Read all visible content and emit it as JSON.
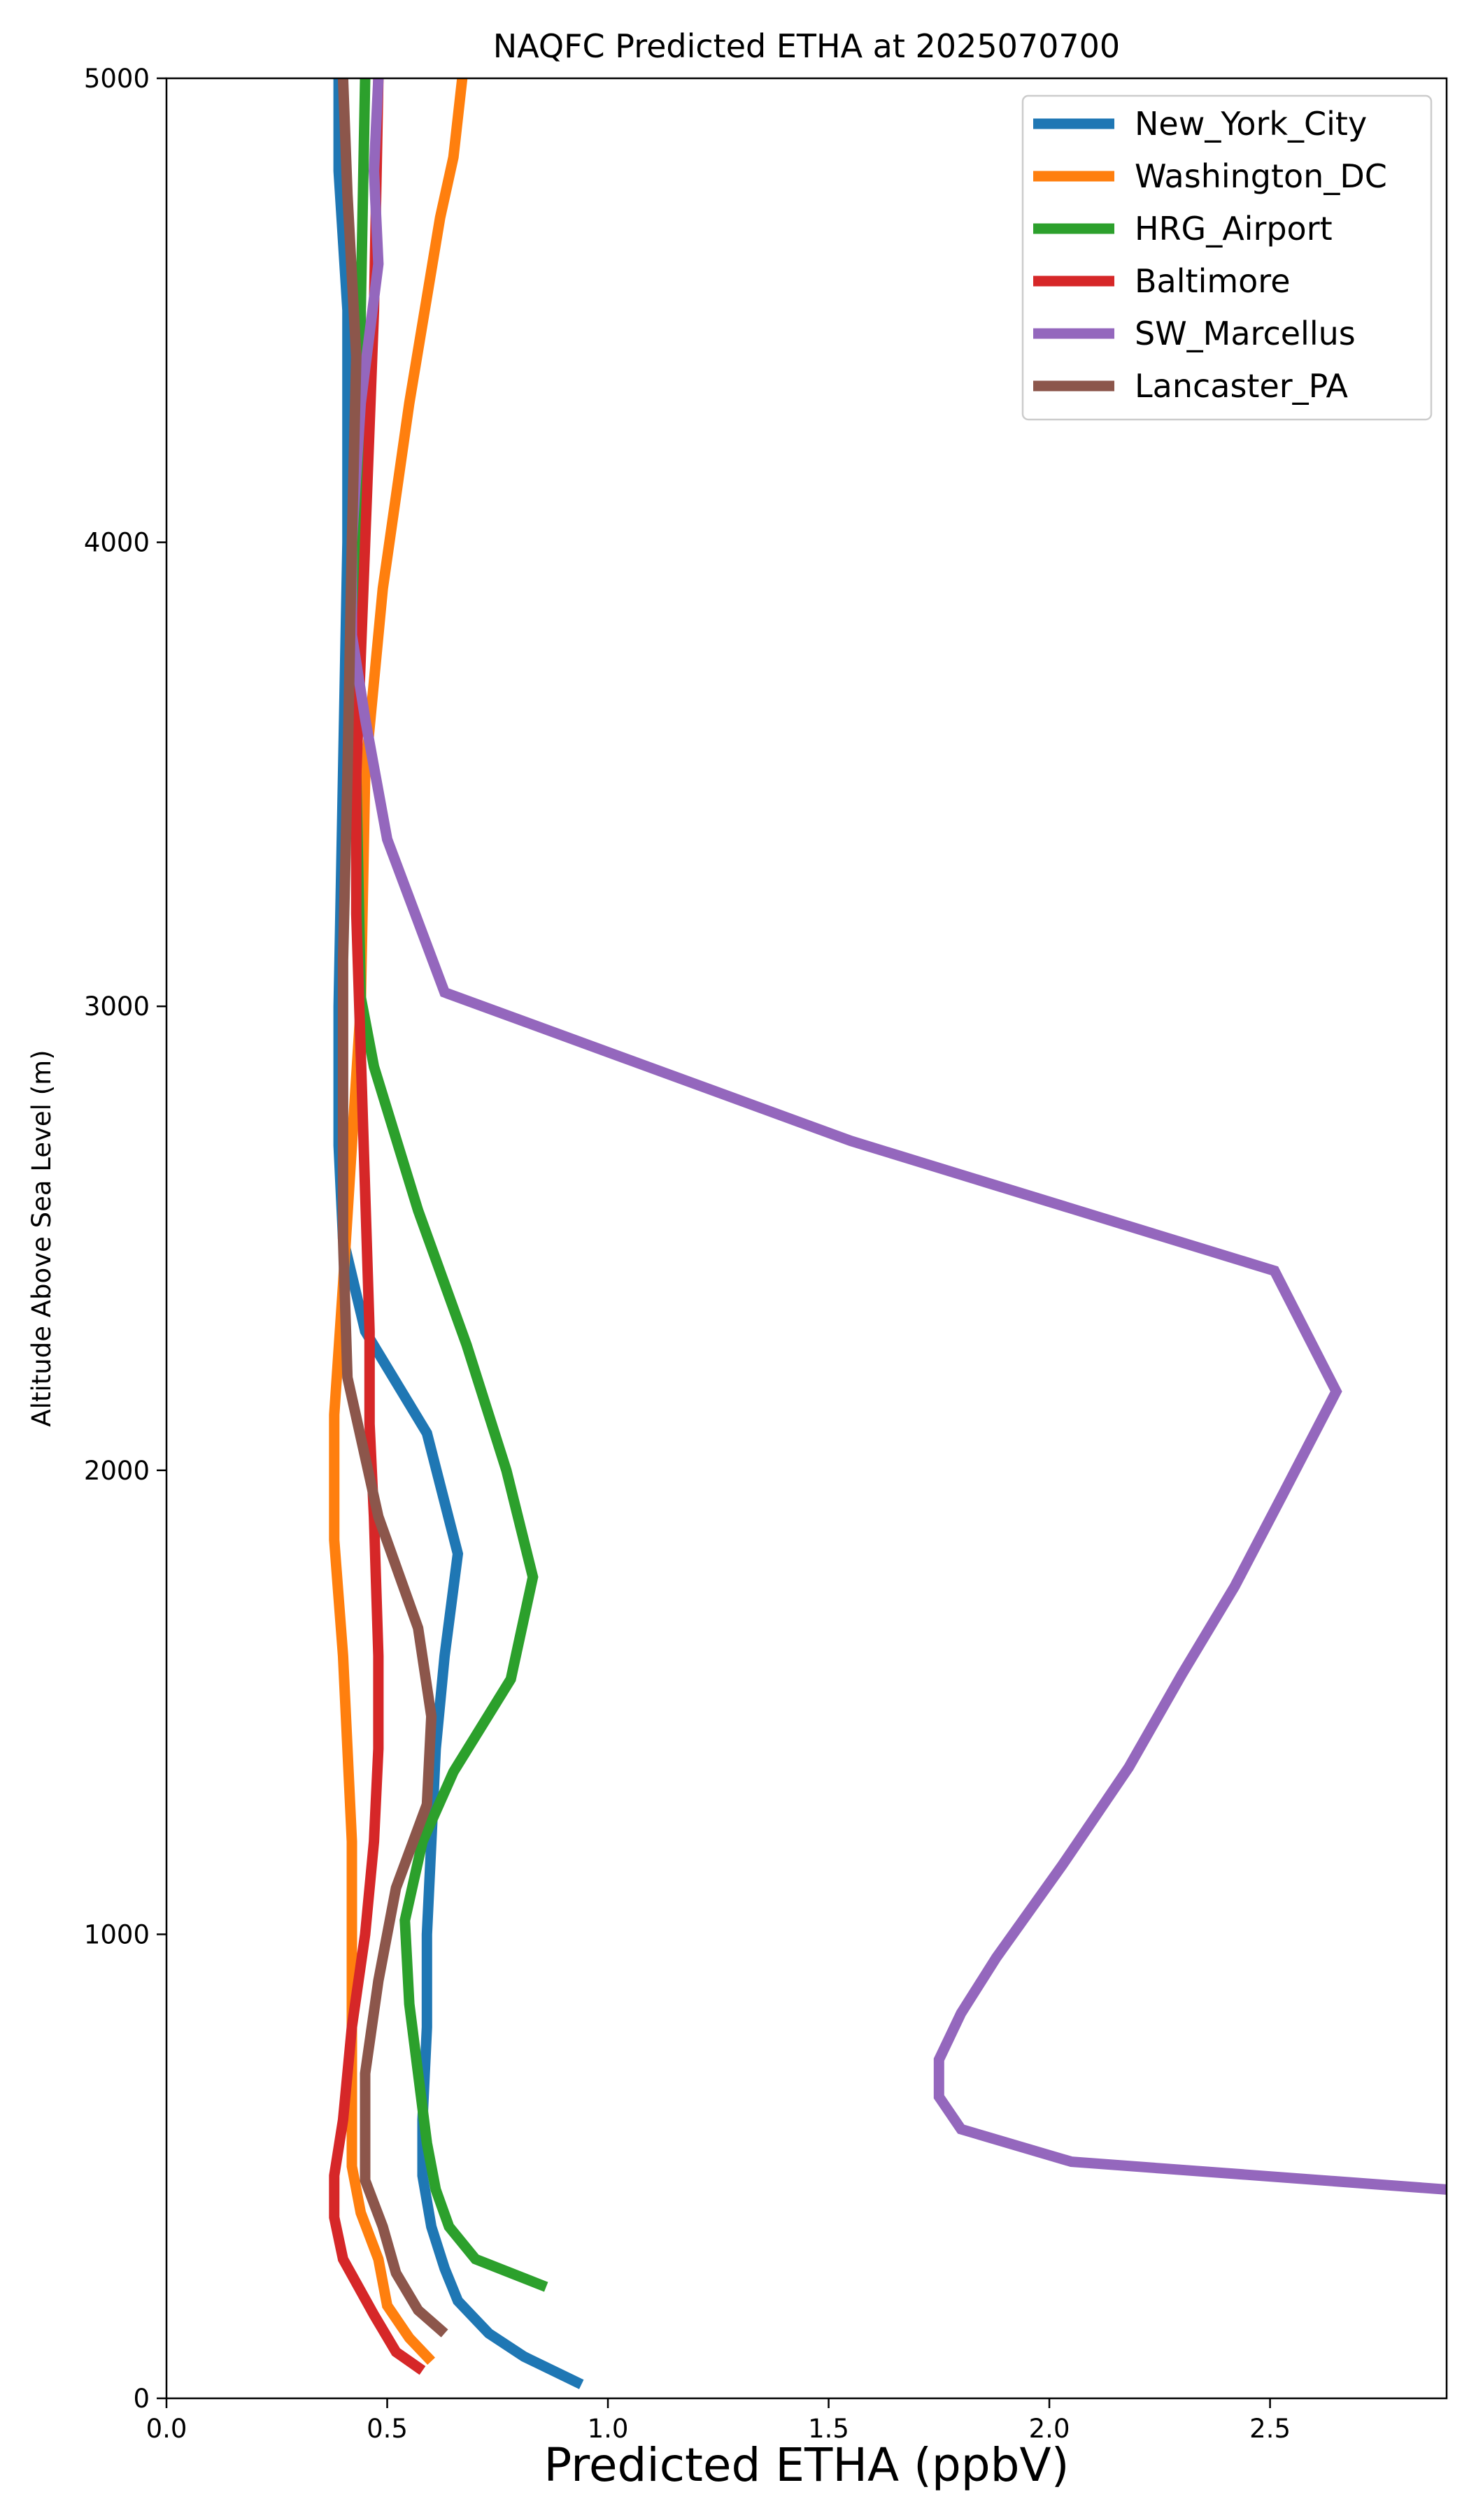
{
  "chart_data": {
    "type": "line",
    "title": "NAQFC Predicted ETHA at 2025070700",
    "xlabel": "Predicted ETHA (ppbV)",
    "ylabel": "Altitude Above Sea Level (m)",
    "xlim": [
      0.0,
      2.9
    ],
    "ylim": [
      0,
      5000
    ],
    "xticks": [
      0.0,
      0.5,
      1.0,
      1.5,
      2.0,
      2.5
    ],
    "xtick_labels": [
      "0.0",
      "0.5",
      "1.0",
      "1.5",
      "2.0",
      "2.5"
    ],
    "yticks": [
      0,
      1000,
      2000,
      3000,
      4000,
      5000
    ],
    "ytick_labels": [
      "0",
      "1000",
      "2000",
      "3000",
      "4000",
      "5000"
    ],
    "grid": false,
    "legend_position": "top-right",
    "series": [
      {
        "name": "New_York_City",
        "color": "#1f77b4",
        "points": [
          [
            0.94,
            30
          ],
          [
            0.81,
            90
          ],
          [
            0.73,
            140
          ],
          [
            0.66,
            210
          ],
          [
            0.63,
            280
          ],
          [
            0.6,
            370
          ],
          [
            0.58,
            480
          ],
          [
            0.58,
            600
          ],
          [
            0.59,
            800
          ],
          [
            0.59,
            1000
          ],
          [
            0.6,
            1200
          ],
          [
            0.61,
            1400
          ],
          [
            0.63,
            1600
          ],
          [
            0.66,
            1820
          ],
          [
            0.59,
            2080
          ],
          [
            0.45,
            2300
          ],
          [
            0.4,
            2500
          ],
          [
            0.39,
            2700
          ],
          [
            0.39,
            3000
          ],
          [
            0.4,
            3500
          ],
          [
            0.41,
            4000
          ],
          [
            0.41,
            4500
          ],
          [
            0.39,
            4800
          ],
          [
            0.39,
            5000
          ]
        ]
      },
      {
        "name": "Washington_DC",
        "color": "#ff7f0e",
        "points": [
          [
            0.6,
            80
          ],
          [
            0.55,
            130
          ],
          [
            0.5,
            200
          ],
          [
            0.48,
            300
          ],
          [
            0.44,
            400
          ],
          [
            0.42,
            500
          ],
          [
            0.42,
            700
          ],
          [
            0.42,
            1000
          ],
          [
            0.42,
            1200
          ],
          [
            0.41,
            1400
          ],
          [
            0.4,
            1600
          ],
          [
            0.38,
            1850
          ],
          [
            0.38,
            2000
          ],
          [
            0.38,
            2120
          ],
          [
            0.4,
            2400
          ],
          [
            0.42,
            2700
          ],
          [
            0.44,
            3000
          ],
          [
            0.45,
            3500
          ],
          [
            0.49,
            3900
          ],
          [
            0.55,
            4300
          ],
          [
            0.62,
            4700
          ],
          [
            0.65,
            4830
          ],
          [
            0.67,
            5000
          ]
        ]
      },
      {
        "name": "HRG_Airport",
        "color": "#2ca02c",
        "points": [
          [
            0.86,
            240
          ],
          [
            0.7,
            300
          ],
          [
            0.64,
            370
          ],
          [
            0.61,
            450
          ],
          [
            0.59,
            550
          ],
          [
            0.57,
            700
          ],
          [
            0.55,
            850
          ],
          [
            0.54,
            1030
          ],
          [
            0.58,
            1200
          ],
          [
            0.65,
            1350
          ],
          [
            0.78,
            1550
          ],
          [
            0.83,
            1770
          ],
          [
            0.77,
            2000
          ],
          [
            0.68,
            2270
          ],
          [
            0.57,
            2560
          ],
          [
            0.47,
            2870
          ],
          [
            0.44,
            3020
          ],
          [
            0.43,
            3500
          ],
          [
            0.44,
            4000
          ],
          [
            0.44,
            4500
          ],
          [
            0.45,
            5000
          ]
        ]
      },
      {
        "name": "Baltimore",
        "color": "#d62728",
        "points": [
          [
            0.58,
            60
          ],
          [
            0.52,
            100
          ],
          [
            0.47,
            180
          ],
          [
            0.4,
            300
          ],
          [
            0.38,
            390
          ],
          [
            0.38,
            480
          ],
          [
            0.4,
            600
          ],
          [
            0.42,
            800
          ],
          [
            0.45,
            1000
          ],
          [
            0.47,
            1200
          ],
          [
            0.48,
            1400
          ],
          [
            0.48,
            1600
          ],
          [
            0.47,
            1900
          ],
          [
            0.46,
            2100
          ],
          [
            0.46,
            2300
          ],
          [
            0.45,
            2600
          ],
          [
            0.44,
            2900
          ],
          [
            0.43,
            3200
          ],
          [
            0.43,
            3500
          ],
          [
            0.45,
            4000
          ],
          [
            0.47,
            4500
          ],
          [
            0.48,
            5000
          ]
        ]
      },
      {
        "name": "SW_Marcellus",
        "color": "#9467bd",
        "points": [
          [
            2.9,
            450
          ],
          [
            2.05,
            510
          ],
          [
            1.8,
            580
          ],
          [
            1.75,
            650
          ],
          [
            1.75,
            730
          ],
          [
            1.8,
            830
          ],
          [
            1.88,
            950
          ],
          [
            2.03,
            1150
          ],
          [
            2.18,
            1360
          ],
          [
            2.3,
            1560
          ],
          [
            2.42,
            1750
          ],
          [
            2.53,
            1950
          ],
          [
            2.65,
            2170
          ],
          [
            2.51,
            2430
          ],
          [
            1.55,
            2710
          ],
          [
            0.63,
            3030
          ],
          [
            0.5,
            3360
          ],
          [
            0.45,
            3620
          ],
          [
            0.42,
            3800
          ],
          [
            0.42,
            4000
          ],
          [
            0.44,
            4300
          ],
          [
            0.48,
            4600
          ],
          [
            0.47,
            4800
          ],
          [
            0.48,
            5000
          ]
        ]
      },
      {
        "name": "Lancaster_PA",
        "color": "#8c564b",
        "points": [
          [
            0.63,
            140
          ],
          [
            0.57,
            190
          ],
          [
            0.52,
            270
          ],
          [
            0.49,
            370
          ],
          [
            0.45,
            470
          ],
          [
            0.45,
            700
          ],
          [
            0.48,
            900
          ],
          [
            0.52,
            1100
          ],
          [
            0.59,
            1280
          ],
          [
            0.6,
            1470
          ],
          [
            0.57,
            1660
          ],
          [
            0.48,
            1900
          ],
          [
            0.41,
            2200
          ],
          [
            0.4,
            2500
          ],
          [
            0.4,
            2800
          ],
          [
            0.4,
            3100
          ],
          [
            0.41,
            3500
          ],
          [
            0.42,
            4000
          ],
          [
            0.43,
            4400
          ],
          [
            0.41,
            4750
          ],
          [
            0.4,
            5000
          ]
        ]
      }
    ]
  }
}
